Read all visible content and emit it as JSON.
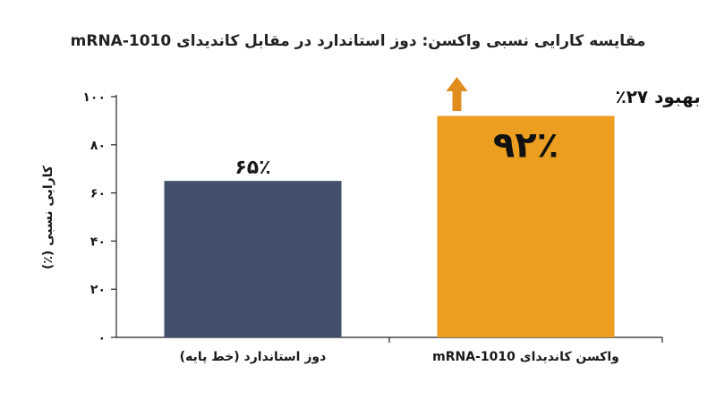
{
  "chart_data": {
    "type": "bar",
    "title": "مقایسه کارایی نسبی واکسن: دوز استاندارد در مقابل کاندیدای mRNA-1010",
    "ylabel": "کارایی نسبی (٪)",
    "xlabel": "",
    "ylim": [
      0,
      100
    ],
    "yticks": [
      0,
      20,
      40,
      60,
      80,
      100
    ],
    "ytick_labels": [
      "۰",
      "۲۰",
      "۴۰",
      "۶۰",
      "۸۰",
      "۱۰۰"
    ],
    "categories": [
      "دوز استاندارد (خط پایه)",
      "واکسن کاندیدای mRNA-1010"
    ],
    "values": [
      65,
      92
    ],
    "value_labels": [
      "۶۵٪",
      "۹۲٪"
    ],
    "colors": [
      "#434f6d",
      "#eb9e1f"
    ],
    "annotation": {
      "text": "بهبود ۲۷٪",
      "arrow_color": "#e08d1e",
      "target_category_index": 1
    },
    "grid": false,
    "legend": "none"
  }
}
